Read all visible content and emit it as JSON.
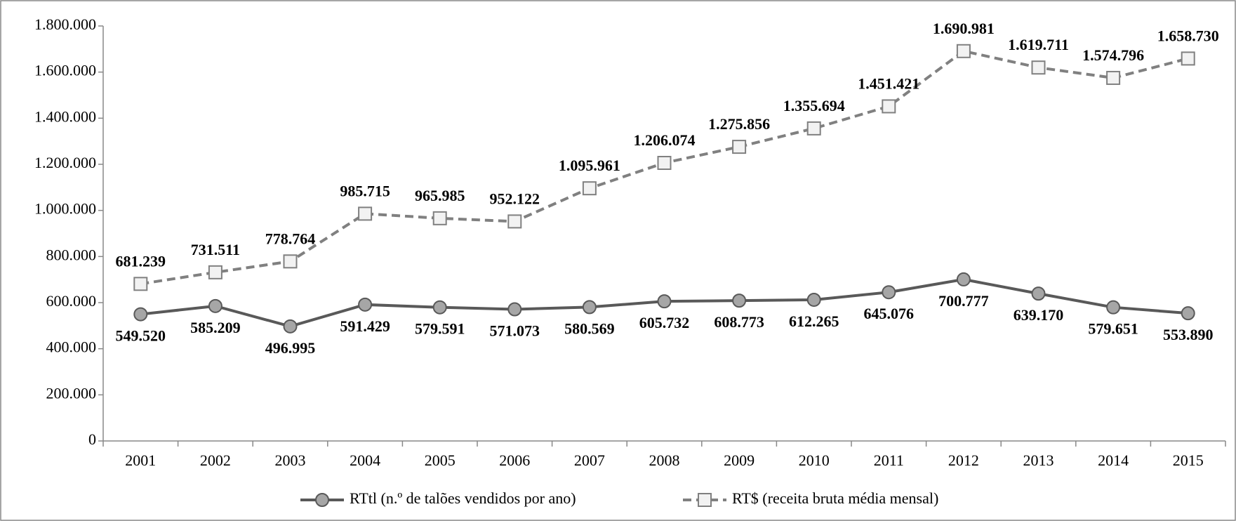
{
  "chart_data": {
    "type": "line",
    "categories": [
      "2001",
      "2002",
      "2003",
      "2004",
      "2005",
      "2006",
      "2007",
      "2008",
      "2009",
      "2010",
      "2011",
      "2012",
      "2013",
      "2014",
      "2015"
    ],
    "series": [
      {
        "name": "RTtl (n.º de talões vendidos por ano)",
        "color": "#595959",
        "marker": "circle",
        "marker_fill": "#a6a6a6",
        "dashed": false,
        "label_position": "below",
        "values": [
          549520,
          585209,
          496995,
          591429,
          579591,
          571073,
          580569,
          605732,
          608773,
          612265,
          645076,
          700777,
          639170,
          579651,
          553890
        ],
        "value_labels": [
          "549.520",
          "585.209",
          "496.995",
          "591.429",
          "579.591",
          "571.073",
          "580.569",
          "605.732",
          "608.773",
          "612.265",
          "645.076",
          "700.777",
          "639.170",
          "579.651",
          "553.890"
        ]
      },
      {
        "name": "RT$ (receita bruta média mensal)",
        "color": "#808080",
        "marker": "square",
        "marker_fill": "#f2f2f2",
        "dashed": true,
        "label_position": "above",
        "values": [
          681239,
          731511,
          778764,
          985715,
          965985,
          952122,
          1095961,
          1206074,
          1275856,
          1355694,
          1451421,
          1690981,
          1619711,
          1574796,
          1658730
        ],
        "value_labels": [
          "681.239",
          "731.511",
          "778.764",
          "985.715",
          "965.985",
          "952.122",
          "1.095.961",
          "1.206.074",
          "1.275.856",
          "1.355.694",
          "1.451.421",
          "1.690.981",
          "1.619.711",
          "1.574.796",
          "1.658.730"
        ]
      }
    ],
    "ylim": [
      0,
      1800000
    ],
    "yticks": [
      0,
      {
        "value": 200000,
        "label": "200.000"
      },
      {
        "value": 400000,
        "label": "400.000"
      },
      {
        "value": 600000,
        "label": "600.000"
      },
      {
        "value": 800000,
        "label": "800.000"
      },
      {
        "value": 1000000,
        "label": "1.000.000"
      },
      {
        "value": 1200000,
        "label": "1.200.000"
      },
      {
        "value": 1400000,
        "label": "1.400.000"
      },
      {
        "value": 1600000,
        "label": "1.600.000"
      },
      {
        "value": 1800000,
        "label": "1.800.000"
      }
    ],
    "grid": false,
    "legend": "bottom"
  }
}
